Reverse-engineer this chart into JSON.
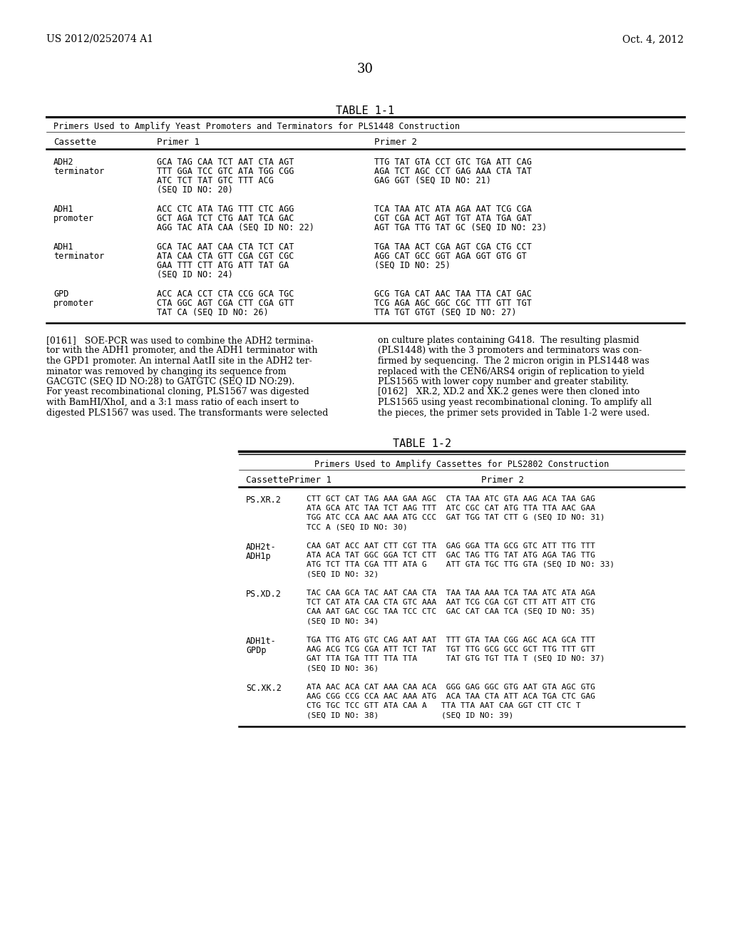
{
  "header_left": "US 2012/0252074 A1",
  "header_right": "Oct. 4, 2012",
  "page_number": "30",
  "bg_color": "#ffffff"
}
